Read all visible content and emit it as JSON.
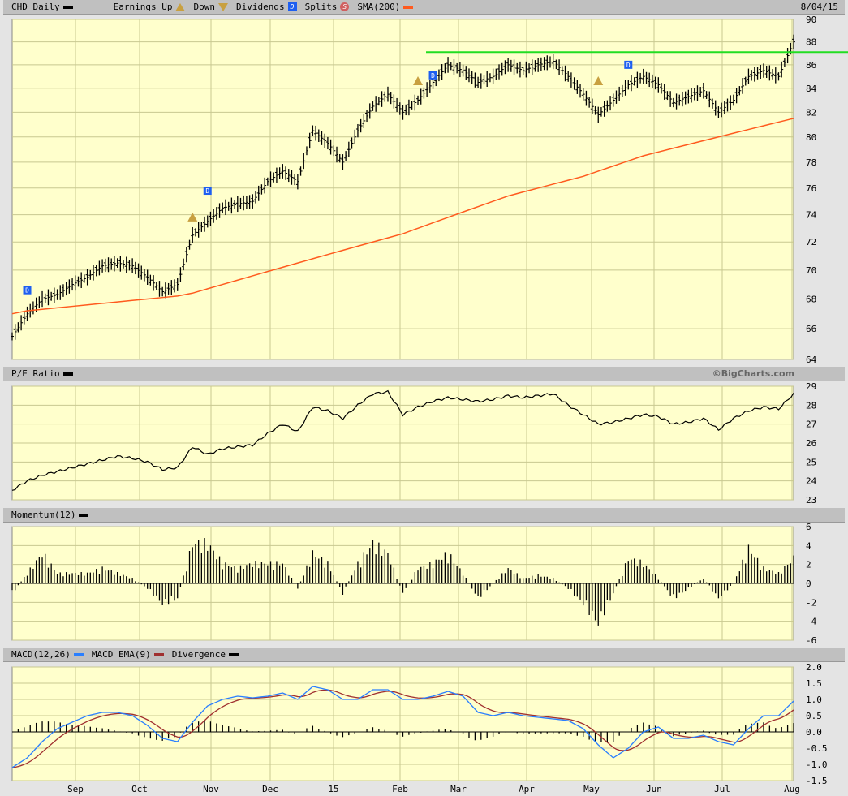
{
  "header": {
    "symbol_label": "CHD Daily",
    "earnings_label": "Earnings Up",
    "down_label": "Down",
    "dividends_label": "Dividends",
    "dividend_glyph": "D",
    "splits_label": "Splits",
    "split_glyph": "S",
    "sma_label": "SMA(200)",
    "date": "8/04/15"
  },
  "pe_header": {
    "label": "P/E Ratio",
    "copyright": "©BigCharts.com"
  },
  "momentum_header": {
    "label": "Momentum(12)"
  },
  "macd_header": {
    "macd_label": "MACD(12,26)",
    "ema_label": "MACD EMA(9)",
    "div_label": "Divergence"
  },
  "colors": {
    "panel": "#ffffcc",
    "grid": "#c8c890",
    "sma": "#ff5a1e",
    "resistance": "#22dd22",
    "macd": "#2a7fff",
    "ema": "#a03030",
    "dividend": "#1e5ff0",
    "earnings": "#c8a040"
  },
  "chart_data": [
    {
      "type": "ohlc",
      "title": "CHD Daily",
      "scale": "log",
      "ylim": [
        64,
        90
      ],
      "y_ticks": [
        64,
        66,
        68,
        70,
        72,
        74,
        76,
        78,
        80,
        82,
        84,
        86,
        88,
        90
      ],
      "x_ticks": [
        "Sep",
        "Oct",
        "Nov",
        "Dec",
        "15",
        "Feb",
        "Mar",
        "Apr",
        "May",
        "Jun",
        "Jul",
        "Aug"
      ],
      "weekly_close": [
        65.5,
        67,
        68,
        68.3,
        69,
        69.5,
        70.3,
        70.5,
        70.3,
        69.5,
        68.5,
        69,
        72.5,
        73.5,
        74.5,
        74.8,
        75,
        76.5,
        77.3,
        76.5,
        80.5,
        79.5,
        78,
        80.5,
        82.5,
        83.5,
        82,
        83,
        84.5,
        86,
        85.5,
        84.5,
        85,
        86,
        85.5,
        86,
        86.3,
        85,
        83.5,
        81.8,
        83,
        84.3,
        85,
        84.3,
        82.8,
        83.3,
        83.8,
        82,
        83,
        85,
        85.5,
        85,
        88
      ],
      "sma200": [
        67,
        67.2,
        67.3,
        67.4,
        67.5,
        67.6,
        67.7,
        67.8,
        67.9,
        68,
        68.1,
        68.2,
        68.4,
        68.7,
        69.0,
        69.3,
        69.6,
        69.9,
        70.2,
        70.5,
        70.8,
        71.1,
        71.4,
        71.7,
        72.0,
        72.3,
        72.6,
        73.0,
        73.4,
        73.8,
        74.2,
        74.6,
        75.0,
        75.4,
        75.7,
        76.0,
        76.3,
        76.6,
        76.9,
        77.3,
        77.7,
        78.1,
        78.5,
        78.8,
        79.1,
        79.4,
        79.7,
        80.0,
        80.3,
        80.6,
        80.9,
        81.2,
        81.5
      ],
      "resistance": 87.1,
      "dividends": [
        {
          "week": 1,
          "price": 68.6
        },
        {
          "week": 13,
          "price": 75.8
        },
        {
          "week": 28,
          "price": 85.1
        },
        {
          "week": 41,
          "price": 86
        }
      ],
      "earnings_up": [
        {
          "week": 12,
          "price": 73.8
        },
        {
          "week": 27,
          "price": 84.6
        },
        {
          "week": 39,
          "price": 84.6
        }
      ]
    },
    {
      "type": "line",
      "title": "P/E Ratio",
      "ylim": [
        23,
        29
      ],
      "y_ticks": [
        23,
        24,
        25,
        26,
        27,
        28,
        29
      ],
      "weekly": [
        23.5,
        24,
        24.3,
        24.5,
        24.7,
        24.9,
        25.1,
        25.3,
        25.2,
        25,
        24.6,
        24.7,
        25.8,
        25.4,
        25.7,
        25.8,
        25.9,
        26.5,
        27.0,
        26.6,
        27.9,
        27.7,
        27.3,
        28,
        28.6,
        28.7,
        27.5,
        27.9,
        28.2,
        28.4,
        28.3,
        28.2,
        28.3,
        28.5,
        28.4,
        28.5,
        28.6,
        28,
        27.5,
        27,
        27.1,
        27.3,
        27.5,
        27.4,
        27,
        27.1,
        27.3,
        26.7,
        27.3,
        27.7,
        27.9,
        27.8,
        28.6
      ]
    },
    {
      "type": "bar",
      "title": "Momentum(12)",
      "ylim": [
        -6,
        6
      ],
      "y_ticks": [
        -6,
        -4,
        -2,
        0,
        2,
        4,
        6
      ],
      "weekly": [
        -1,
        1,
        3,
        1,
        1,
        1,
        1.5,
        1,
        0.5,
        -0.5,
        -2,
        -1.5,
        4,
        4,
        2,
        1.5,
        2,
        2,
        2,
        -0.5,
        3,
        2,
        -1,
        2,
        4,
        3,
        -1,
        1.5,
        2,
        3,
        1,
        -1.5,
        0,
        1.5,
        0.5,
        0.8,
        0.5,
        -0.5,
        -2,
        -4,
        -1,
        2.5,
        2,
        0.5,
        -1.5,
        -0.5,
        0.5,
        -1.5,
        0,
        3.5,
        1.5,
        1,
        2.5
      ]
    },
    {
      "type": "line",
      "title": "MACD(12,26)",
      "ylim": [
        -1.5,
        2.0
      ],
      "y_ticks": [
        "2.0",
        "1.5",
        "1.0",
        "0.5",
        "0.0",
        "-0.5",
        "-1.0",
        "-1.5"
      ],
      "weekly_macd": [
        -1.1,
        -0.8,
        -0.3,
        0.1,
        0.3,
        0.5,
        0.6,
        0.6,
        0.5,
        0.2,
        -0.2,
        -0.3,
        0.3,
        0.8,
        1.0,
        1.1,
        1.05,
        1.1,
        1.2,
        1.0,
        1.4,
        1.3,
        1.0,
        1.0,
        1.3,
        1.3,
        1.0,
        1.0,
        1.1,
        1.25,
        1.1,
        0.6,
        0.5,
        0.6,
        0.5,
        0.45,
        0.4,
        0.35,
        0.1,
        -0.4,
        -0.8,
        -0.5,
        0.0,
        0.15,
        -0.2,
        -0.2,
        -0.1,
        -0.3,
        -0.4,
        0.1,
        0.5,
        0.5,
        0.95
      ]
    }
  ]
}
